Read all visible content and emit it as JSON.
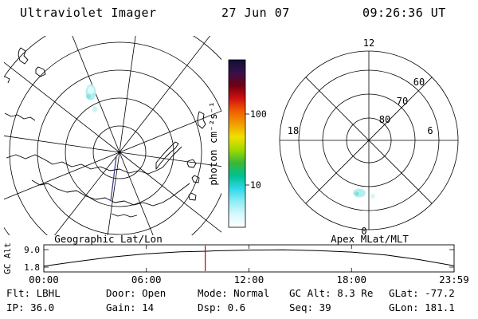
{
  "header": {
    "title": "Ultraviolet Imager",
    "date": "27 Jun 07",
    "time": "09:26:36 UT"
  },
  "geo_panel": {
    "caption": "Geographic Lat/Lon"
  },
  "apex_panel": {
    "caption": "Apex MLat/MLT",
    "mlt_top": "12",
    "mlt_left": "18",
    "mlt_right": "6",
    "mlt_bottom": "0",
    "mlat_outer": "60",
    "mlat_mid": "70",
    "mlat_inner": "80"
  },
  "colorbar": {
    "label": "photon cm⁻²s⁻¹",
    "tick_upper": "100",
    "tick_lower": "10",
    "colors_top_to_bottom": [
      "#101034",
      "#38104c",
      "#700010",
      "#d01010",
      "#f06000",
      "#f0a000",
      "#f0e000",
      "#a0d800",
      "#38b838",
      "#00c090",
      "#30d8e8",
      "#90ecf6",
      "#d8f8fc",
      "#ffffff"
    ]
  },
  "alt_chart": {
    "ylabel": "GC Alt",
    "ytick_top": "9.0",
    "ytick_bottom": "1.8",
    "xticks": [
      "00:00",
      "06:00",
      "12:00",
      "18:00",
      "23:59"
    ],
    "marker_color": "#c00000"
  },
  "status": {
    "row1": [
      "Flt: LBHL",
      "Door: Open",
      "Mode: Normal",
      "GC Alt: 8.3 Re",
      "GLat: -77.2"
    ],
    "row2": [
      "IP: 36.0",
      "Gain: 14",
      "Dsp: 0.6",
      "Seq: 39",
      "GLon: 181.1"
    ]
  },
  "chart_data": [
    {
      "type": "heatmap",
      "title": "Geographic Lat/Lon",
      "projection": "south polar geographic grid with Antarctic coastlines",
      "grid": "latitude circles every 10 deg, meridians every 30 deg",
      "colorbar": {
        "label": "photon cm⁻²s⁻¹",
        "scale": "log",
        "ticks": [
          10,
          100
        ]
      },
      "features": [
        {
          "name": "faint auroral emission patch",
          "approx_photon_flux": 10,
          "location": "upper-left of pole"
        }
      ]
    },
    {
      "type": "heatmap",
      "title": "Apex MLat/MLT",
      "rings_mlat": [
        80,
        70,
        60
      ],
      "mlt_labels": [
        12,
        18,
        6,
        0
      ],
      "features": [
        {
          "name": "faint auroral emission patch",
          "approx_photon_flux": 10,
          "location": "near 0 MLT, ~65 MLat"
        }
      ]
    },
    {
      "type": "line",
      "title": "Spacecraft geocentric altitude vs UT",
      "ylabel": "GC Alt",
      "yticks": [
        1.8,
        9.0
      ],
      "x": [
        "00:00",
        "02:00",
        "04:00",
        "06:00",
        "08:00",
        "09:26",
        "10:00",
        "12:00",
        "14:00",
        "16:00",
        "18:00",
        "20:00",
        "22:00",
        "23:59"
      ],
      "values": [
        2.2,
        4.2,
        6.0,
        7.3,
        8.1,
        8.3,
        8.5,
        8.8,
        8.9,
        8.6,
        8.0,
        6.8,
        4.8,
        2.4
      ],
      "marker": {
        "time": "09:26",
        "value": 8.3,
        "color": "#c00000"
      },
      "xlim": [
        "00:00",
        "23:59"
      ]
    }
  ]
}
